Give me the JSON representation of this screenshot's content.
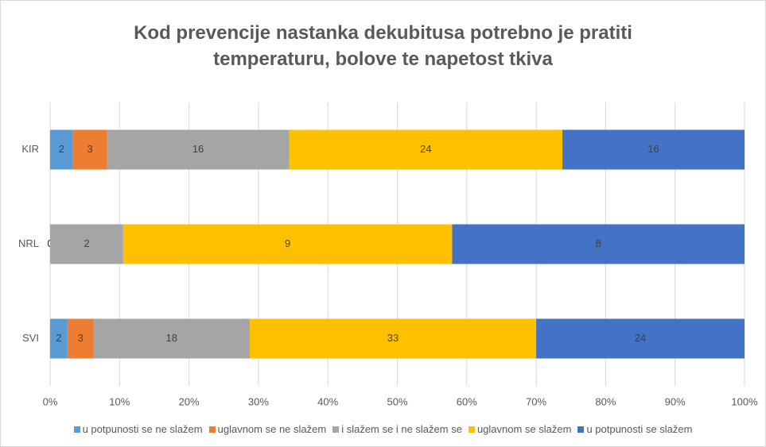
{
  "chart_data": {
    "type": "bar",
    "orientation": "horizontal",
    "stacking": "percent",
    "title": "Kod prevencije nastanka dekubitusa potrebno je pratiti temperaturu, bolove te napetost tkiva",
    "categories": [
      "KIR",
      "NRL",
      "SVI"
    ],
    "series": [
      {
        "name": "u potpunosti se ne slažem",
        "color": "#5b9bd5",
        "values": [
          2,
          0,
          2
        ]
      },
      {
        "name": "uglavnom se ne slažem",
        "color": "#ed7d31",
        "values": [
          3,
          0,
          3
        ]
      },
      {
        "name": "i slažem se i ne slažem se",
        "color": "#a5a5a5",
        "values": [
          16,
          2,
          18
        ]
      },
      {
        "name": "uglavnom se slažem",
        "color": "#ffc000",
        "values": [
          24,
          9,
          33
        ]
      },
      {
        "name": "u potpunosti se slažem",
        "color": "#4472c4",
        "values": [
          16,
          8,
          24
        ]
      }
    ],
    "xlim": [
      0,
      100
    ],
    "xticks": [
      {
        "value": 0,
        "label": "0%"
      },
      {
        "value": 10,
        "label": "10%"
      },
      {
        "value": 20,
        "label": "20%"
      },
      {
        "value": 30,
        "label": "30%"
      },
      {
        "value": 40,
        "label": "40%"
      },
      {
        "value": 50,
        "label": "50%"
      },
      {
        "value": 60,
        "label": "60%"
      },
      {
        "value": 70,
        "label": "70%"
      },
      {
        "value": 80,
        "label": "80%"
      },
      {
        "value": 90,
        "label": "90%"
      },
      {
        "value": 100,
        "label": "100%"
      }
    ],
    "grid": true,
    "legend": "bottom"
  }
}
